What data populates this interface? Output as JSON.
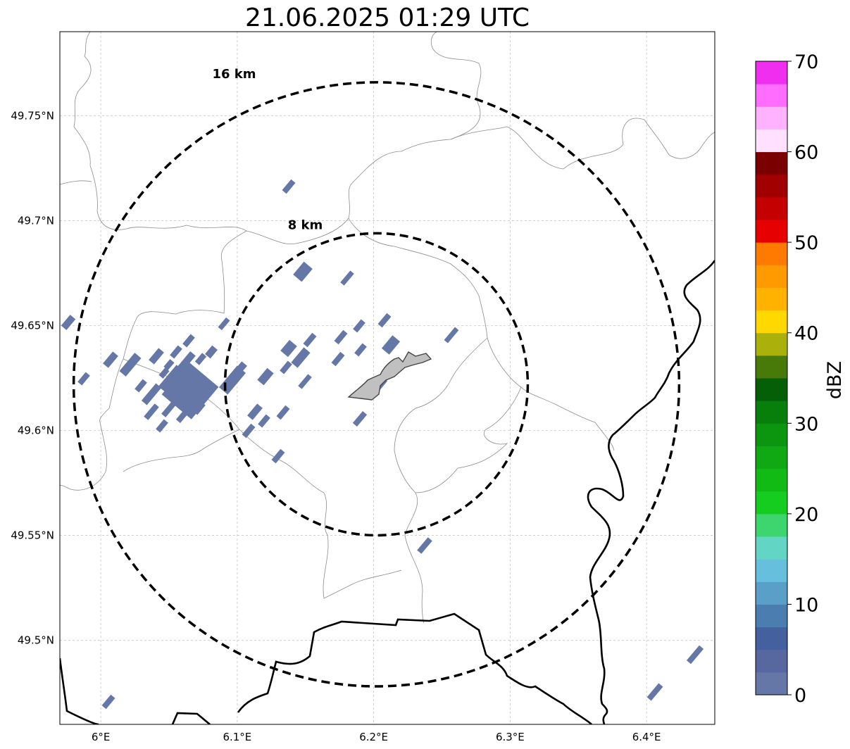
{
  "title": "21.06.2025 01:29 UTC",
  "map": {
    "lon_range": [
      5.97,
      6.45
    ],
    "lat_range": [
      49.46,
      49.79
    ],
    "lat_ticks": [
      {
        "value": 49.75,
        "label": "49.75°N"
      },
      {
        "value": 49.7,
        "label": "49.7°N"
      },
      {
        "value": 49.65,
        "label": "49.65°N"
      },
      {
        "value": 49.6,
        "label": "49.6°N"
      },
      {
        "value": 49.55,
        "label": "49.55°N"
      },
      {
        "value": 49.5,
        "label": "49.5°N"
      }
    ],
    "lon_ticks": [
      {
        "value": 6.0,
        "label": "6°E"
      },
      {
        "value": 6.1,
        "label": "6.1°E"
      },
      {
        "value": 6.2,
        "label": "6.2°E"
      },
      {
        "value": 6.3,
        "label": "6.3°E"
      },
      {
        "value": 6.4,
        "label": "6.4°E"
      }
    ],
    "gridlines": true,
    "center": {
      "lon": 6.202,
      "lat": 49.622
    },
    "range_rings": [
      {
        "label": "8 km",
        "radius_km": 8
      },
      {
        "label": "16 km",
        "radius_km": 16
      }
    ],
    "echo_color": "#6577a6",
    "city_fill": "#c0c0c0"
  },
  "colorbar": {
    "label": "dBZ",
    "min": 0,
    "max": 70,
    "ticks": [
      {
        "value": 0,
        "label": "0"
      },
      {
        "value": 10,
        "label": "10"
      },
      {
        "value": 20,
        "label": "20"
      },
      {
        "value": 30,
        "label": "30"
      },
      {
        "value": 40,
        "label": "40"
      },
      {
        "value": 50,
        "label": "50"
      },
      {
        "value": 60,
        "label": "60"
      },
      {
        "value": 70,
        "label": "70"
      }
    ],
    "colors": [
      "#6577a6",
      "#5768a0",
      "#44609f",
      "#4c7db0",
      "#5a9fc8",
      "#66c0dd",
      "#62d5c5",
      "#3dd66e",
      "#14cd1e",
      "#11bb14",
      "#10a813",
      "#0c950f",
      "#077f0a",
      "#055f06",
      "#477a08",
      "#a9b10a",
      "#ffd800",
      "#ffb300",
      "#ff9a00",
      "#ff7a00",
      "#e60000",
      "#c40000",
      "#a00000",
      "#7a0000",
      "#ffe0ff",
      "#ffb2ff",
      "#ff6dff",
      "#ef2eef"
    ]
  }
}
